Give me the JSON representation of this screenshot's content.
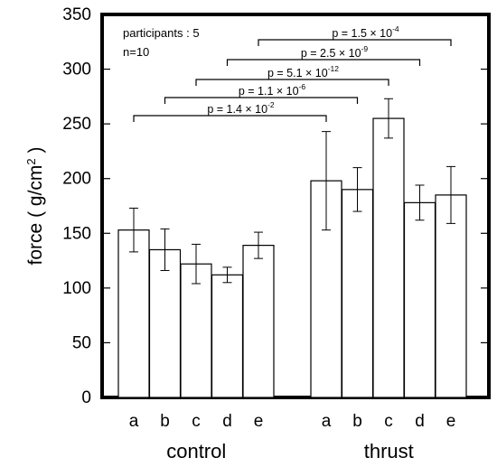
{
  "chart_data": {
    "type": "bar",
    "ylabel": "force ( g/cm",
    "ylabel_sup": "2",
    "ylabel_end": " )",
    "ylim": [
      0,
      350
    ],
    "yticks": [
      "0",
      "50",
      "100",
      "150",
      "200",
      "250",
      "300",
      "350"
    ],
    "grid": false,
    "notes": [
      "participants : 5",
      "n=10"
    ],
    "groups": [
      {
        "name": "control",
        "categories": [
          "a",
          "b",
          "c",
          "d",
          "e"
        ],
        "values": [
          153,
          135,
          122,
          112,
          139
        ],
        "errors": [
          20,
          19,
          18,
          7,
          12
        ]
      },
      {
        "name": "thrust",
        "categories": [
          "a",
          "b",
          "c",
          "d",
          "e"
        ],
        "values": [
          198,
          190,
          255,
          178,
          185
        ],
        "errors": [
          45,
          20,
          18,
          16,
          26
        ]
      }
    ],
    "annotations": [
      {
        "text": "p = 1.4 × 10",
        "exp": "-2",
        "from": "control.a",
        "to": "thrust.a"
      },
      {
        "text": "p = 1.1 × 10",
        "exp": "-6",
        "from": "control.b",
        "to": "thrust.b"
      },
      {
        "text": "p = 5.1 × 10",
        "exp": "-12",
        "from": "control.c",
        "to": "thrust.c"
      },
      {
        "text": "p = 2.5 × 10",
        "exp": "-9",
        "from": "control.d",
        "to": "thrust.d"
      },
      {
        "text": "p = 1.5 × 10",
        "exp": "-4",
        "from": "control.e",
        "to": "thrust.e"
      }
    ]
  }
}
